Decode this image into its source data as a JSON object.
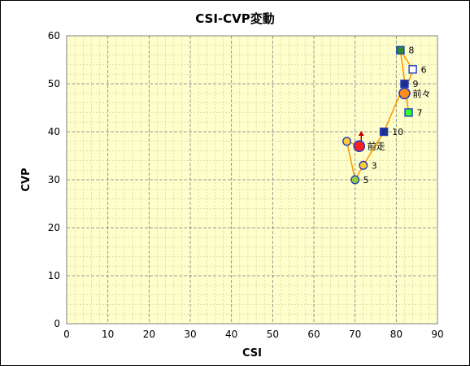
{
  "chart_data": {
    "type": "scatter",
    "title": "CSI-CVP変動",
    "xlabel": "CSI",
    "ylabel": "CVP",
    "xlim": [
      0,
      90
    ],
    "ylim": [
      0,
      60
    ],
    "x_ticks": [
      "0",
      "10",
      "20",
      "30",
      "40",
      "50",
      "60",
      "70",
      "80",
      "90"
    ],
    "y_ticks": [
      "0",
      "10",
      "20",
      "30",
      "40",
      "50",
      "60"
    ],
    "grid": true,
    "colors": {
      "plot_bg": "#ffffcc",
      "grid_major": "#7f7f7f",
      "grid_minor": "#c8c8a0",
      "line": "#ff9900",
      "arrow": "#cc0000",
      "circle_border": "#1f3fbf",
      "circle_fill": "#ffcc33",
      "square_navy": "#1f2f8f",
      "square_green_dark": "#2e8b2e",
      "square_green_light": "#33ff33",
      "square_white": "#ffffff",
      "current": "#ff2020",
      "previous": "#ff8c1a"
    },
    "path": [
      {
        "x": 82,
        "y": 48
      },
      {
        "x": 84,
        "y": 53
      },
      {
        "x": 81,
        "y": 57
      },
      {
        "x": 83,
        "y": 44
      },
      {
        "x": 82,
        "y": 50
      },
      {
        "x": 77,
        "y": 40
      },
      {
        "x": 72,
        "y": 33
      },
      {
        "x": 70,
        "y": 30
      },
      {
        "x": 68,
        "y": 38
      },
      {
        "x": 71,
        "y": 37
      }
    ],
    "arrow": {
      "from": {
        "x": 71.5,
        "y": 37.2
      },
      "to": {
        "x": 71.5,
        "y": 39.5
      }
    },
    "points": [
      {
        "label": "8",
        "x": 81,
        "y": 57,
        "marker": "square",
        "fill": "#2e8b2e"
      },
      {
        "label": "6",
        "x": 84,
        "y": 53,
        "marker": "square",
        "fill": "#ffffff"
      },
      {
        "label": "9",
        "x": 82,
        "y": 50,
        "marker": "square",
        "fill": "#1f2f8f"
      },
      {
        "label": "前々",
        "x": 82,
        "y": 48,
        "marker": "circle-lg",
        "fill": "#ff8c1a"
      },
      {
        "label": "7",
        "x": 83,
        "y": 44,
        "marker": "square",
        "fill": "#33ff33"
      },
      {
        "label": "10",
        "x": 77,
        "y": 40,
        "marker": "square",
        "fill": "#1f2f8f"
      },
      {
        "label": "",
        "x": 68,
        "y": 38,
        "marker": "circle",
        "fill": "#ffcc33"
      },
      {
        "label": "前走",
        "x": 71,
        "y": 37,
        "marker": "circle-lg",
        "fill": "#ff2020"
      },
      {
        "label": "3",
        "x": 72,
        "y": 33,
        "marker": "circle",
        "fill": "#ffcc33"
      },
      {
        "label": "5",
        "x": 70,
        "y": 30,
        "marker": "circle",
        "fill": "#99cc33"
      }
    ]
  }
}
